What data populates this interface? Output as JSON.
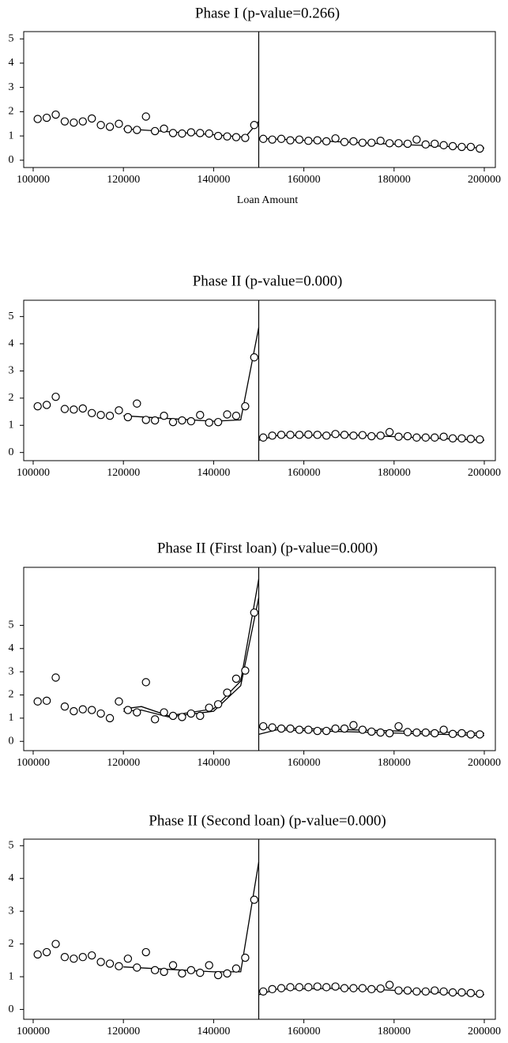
{
  "chart_data": [
    {
      "type": "scatter",
      "title": "Phase I (p-value=0.266)",
      "x_label": "Loan Amount",
      "x": [
        101000,
        103000,
        105000,
        107000,
        109000,
        111000,
        113000,
        115000,
        117000,
        119000,
        121000,
        123000,
        125000,
        127000,
        129000,
        131000,
        133000,
        135000,
        137000,
        139000,
        141000,
        143000,
        145000,
        147000,
        149000,
        151000,
        153000,
        155000,
        157000,
        159000,
        161000,
        163000,
        165000,
        167000,
        169000,
        171000,
        173000,
        175000,
        177000,
        179000,
        181000,
        183000,
        185000,
        187000,
        189000,
        191000,
        193000,
        195000,
        197000,
        199000
      ],
      "values": [
        1.7,
        1.75,
        1.88,
        1.6,
        1.55,
        1.6,
        1.72,
        1.45,
        1.38,
        1.5,
        1.28,
        1.25,
        1.8,
        1.2,
        1.3,
        1.12,
        1.1,
        1.15,
        1.12,
        1.1,
        1.0,
        0.98,
        0.95,
        0.92,
        1.45,
        0.88,
        0.85,
        0.88,
        0.82,
        0.85,
        0.8,
        0.82,
        0.78,
        0.9,
        0.75,
        0.78,
        0.72,
        0.72,
        0.8,
        0.7,
        0.7,
        0.68,
        0.85,
        0.65,
        0.68,
        0.62,
        0.58,
        0.55,
        0.55,
        0.48
      ],
      "fits": [
        {
          "x": [
            120000,
            140000,
            147000,
            150000
          ],
          "values": [
            1.3,
            1.05,
            0.95,
            1.6
          ]
        },
        {
          "x": [
            150000,
            200000
          ],
          "values": [
            0.9,
            0.5
          ]
        }
      ],
      "cutoff": 150000,
      "xlim": [
        97900,
        202450
      ],
      "xticks": [
        100000,
        120000,
        140000,
        160000,
        180000,
        200000
      ],
      "ylim": [
        -0.3,
        5.3
      ],
      "yticks": [
        0,
        1,
        2,
        3,
        4,
        5
      ]
    },
    {
      "type": "scatter",
      "title": "Phase II (p-value=0.000)",
      "x": [
        101000,
        103000,
        105000,
        107000,
        109000,
        111000,
        113000,
        115000,
        117000,
        119000,
        121000,
        123000,
        125000,
        127000,
        129000,
        131000,
        133000,
        135000,
        137000,
        139000,
        141000,
        143000,
        145000,
        147000,
        149000,
        151000,
        153000,
        155000,
        157000,
        159000,
        161000,
        163000,
        165000,
        167000,
        169000,
        171000,
        173000,
        175000,
        177000,
        179000,
        181000,
        183000,
        185000,
        187000,
        189000,
        191000,
        193000,
        195000,
        197000,
        199000
      ],
      "values": [
        1.7,
        1.75,
        2.05,
        1.6,
        1.58,
        1.62,
        1.45,
        1.38,
        1.35,
        1.55,
        1.3,
        1.8,
        1.2,
        1.18,
        1.35,
        1.12,
        1.18,
        1.15,
        1.38,
        1.1,
        1.12,
        1.4,
        1.35,
        1.7,
        3.5,
        0.55,
        0.62,
        0.65,
        0.65,
        0.65,
        0.66,
        0.65,
        0.62,
        0.68,
        0.65,
        0.62,
        0.64,
        0.6,
        0.62,
        0.75,
        0.58,
        0.6,
        0.55,
        0.55,
        0.55,
        0.58,
        0.52,
        0.52,
        0.5,
        0.48
      ],
      "fits": [
        {
          "x": [
            120000,
            140000,
            146000,
            150000
          ],
          "values": [
            1.35,
            1.15,
            1.2,
            4.6
          ]
        },
        {
          "x": [
            150000,
            154000,
            170000,
            200000
          ],
          "values": [
            0.45,
            0.62,
            0.65,
            0.45
          ]
        }
      ],
      "cutoff": 150000,
      "xlim": [
        97900,
        202450
      ],
      "xticks": [
        100000,
        120000,
        140000,
        160000,
        180000,
        200000
      ],
      "ylim": [
        -0.3,
        5.6
      ],
      "yticks": [
        0,
        1,
        2,
        3,
        4,
        5
      ]
    },
    {
      "type": "scatter",
      "title": "Phase II (First loan) (p-value=0.000)",
      "x": [
        101000,
        103000,
        105000,
        107000,
        109000,
        111000,
        113000,
        115000,
        117000,
        119000,
        121000,
        123000,
        125000,
        127000,
        129000,
        131000,
        133000,
        135000,
        137000,
        139000,
        141000,
        143000,
        145000,
        147000,
        149000,
        151000,
        153000,
        155000,
        157000,
        159000,
        161000,
        163000,
        165000,
        167000,
        169000,
        171000,
        173000,
        175000,
        177000,
        179000,
        181000,
        183000,
        185000,
        187000,
        189000,
        191000,
        193000,
        195000,
        197000,
        199000
      ],
      "values": [
        1.72,
        1.75,
        2.75,
        1.5,
        1.3,
        1.38,
        1.35,
        1.2,
        1.0,
        1.72,
        1.35,
        1.25,
        2.55,
        0.95,
        1.25,
        1.1,
        1.05,
        1.2,
        1.1,
        1.45,
        1.6,
        2.1,
        2.7,
        3.05,
        5.55,
        0.65,
        0.6,
        0.55,
        0.55,
        0.5,
        0.5,
        0.45,
        0.45,
        0.55,
        0.55,
        0.7,
        0.5,
        0.42,
        0.38,
        0.35,
        0.65,
        0.4,
        0.38,
        0.38,
        0.35,
        0.5,
        0.32,
        0.35,
        0.3,
        0.3
      ],
      "fits": [
        {
          "x": [
            120000,
            124000,
            130000,
            140000,
            146000,
            150000
          ],
          "values": [
            1.4,
            1.5,
            1.1,
            1.4,
            2.6,
            7.0
          ]
        },
        {
          "x": [
            120000,
            124000,
            130000,
            140000,
            146000,
            150000
          ],
          "values": [
            1.3,
            1.35,
            1.05,
            1.3,
            2.4,
            6.2
          ]
        },
        {
          "x": [
            150000,
            154000,
            200000
          ],
          "values": [
            0.3,
            0.5,
            0.25
          ]
        },
        {
          "x": [
            150000,
            200000
          ],
          "values": [
            0.6,
            0.35
          ]
        }
      ],
      "cutoff": 150000,
      "xlim": [
        97900,
        202450
      ],
      "xticks": [
        100000,
        120000,
        140000,
        160000,
        180000,
        200000
      ],
      "ylim": [
        -0.4,
        7.5
      ],
      "yticks": [
        0,
        1,
        2,
        3,
        4,
        5
      ]
    },
    {
      "type": "scatter",
      "title": "Phase II (Second loan) (p-value=0.000)",
      "x": [
        101000,
        103000,
        105000,
        107000,
        109000,
        111000,
        113000,
        115000,
        117000,
        119000,
        121000,
        123000,
        125000,
        127000,
        129000,
        131000,
        133000,
        135000,
        137000,
        139000,
        141000,
        143000,
        145000,
        147000,
        149000,
        151000,
        153000,
        155000,
        157000,
        159000,
        161000,
        163000,
        165000,
        167000,
        169000,
        171000,
        173000,
        175000,
        177000,
        179000,
        181000,
        183000,
        185000,
        187000,
        189000,
        191000,
        193000,
        195000,
        197000,
        199000
      ],
      "values": [
        1.68,
        1.75,
        2.0,
        1.6,
        1.55,
        1.6,
        1.65,
        1.45,
        1.4,
        1.32,
        1.55,
        1.28,
        1.75,
        1.2,
        1.15,
        1.35,
        1.1,
        1.2,
        1.12,
        1.35,
        1.05,
        1.1,
        1.25,
        1.58,
        3.35,
        0.55,
        0.62,
        0.65,
        0.68,
        0.68,
        0.68,
        0.7,
        0.68,
        0.7,
        0.65,
        0.65,
        0.65,
        0.62,
        0.64,
        0.75,
        0.58,
        0.58,
        0.55,
        0.55,
        0.58,
        0.55,
        0.52,
        0.52,
        0.5,
        0.48
      ],
      "fits": [
        {
          "x": [
            120000,
            140000,
            146000,
            150000
          ],
          "values": [
            1.3,
            1.15,
            1.15,
            4.5
          ]
        },
        {
          "x": [
            150000,
            154000,
            170000,
            200000
          ],
          "values": [
            0.45,
            0.62,
            0.65,
            0.45
          ]
        }
      ],
      "cutoff": 150000,
      "xlim": [
        97900,
        202450
      ],
      "xticks": [
        100000,
        120000,
        140000,
        160000,
        180000,
        200000
      ],
      "ylim": [
        -0.3,
        5.2
      ],
      "yticks": [
        0,
        1,
        2,
        3,
        4,
        5
      ]
    }
  ]
}
